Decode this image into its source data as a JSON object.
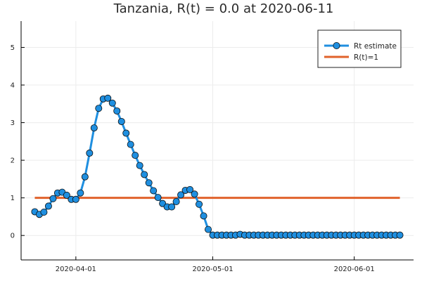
{
  "chart_data": {
    "type": "line",
    "title": "Tanzania, R(t) = 0.0 at 2020-06-11",
    "xlabel": "",
    "ylabel": "",
    "x_start": "2020-03-23",
    "x_step_days": 1,
    "xlim": [
      "2020-03-20",
      "2020-06-14"
    ],
    "ylim": [
      -0.65,
      5.7
    ],
    "yticks": [
      0,
      1,
      2,
      3,
      4,
      5
    ],
    "xticks": [
      "2020-04-01",
      "2020-05-01",
      "2020-06-01"
    ],
    "grid": true,
    "legend_position": "top-right",
    "series": [
      {
        "name": "Rt estimate",
        "color": "#1f8fe0",
        "marker": "circle",
        "values": [
          0.63,
          0.56,
          0.62,
          0.78,
          0.98,
          1.13,
          1.15,
          1.07,
          0.96,
          0.96,
          1.13,
          1.56,
          2.19,
          2.86,
          3.38,
          3.63,
          3.65,
          3.52,
          3.31,
          3.03,
          2.72,
          2.42,
          2.13,
          1.86,
          1.62,
          1.4,
          1.19,
          1.01,
          0.85,
          0.76,
          0.76,
          0.9,
          1.08,
          1.2,
          1.22,
          1.1,
          0.83,
          0.52,
          0.16,
          0.01,
          0.01,
          0.01,
          0.01,
          0.01,
          0.01,
          0.03,
          0.01,
          0.01,
          0.01,
          0.01,
          0.01,
          0.01,
          0.01,
          0.01,
          0.01,
          0.01,
          0.01,
          0.01,
          0.01,
          0.01,
          0.01,
          0.01,
          0.01,
          0.01,
          0.01,
          0.01,
          0.01,
          0.01,
          0.01,
          0.01,
          0.01,
          0.01,
          0.01,
          0.01,
          0.01,
          0.01,
          0.01,
          0.01,
          0.01,
          0.01,
          0.01
        ]
      },
      {
        "name": "R(t)=1",
        "color": "#e0622b",
        "values_x": [
          "2020-03-23",
          "2020-06-11"
        ],
        "values": [
          1,
          1
        ]
      }
    ]
  }
}
